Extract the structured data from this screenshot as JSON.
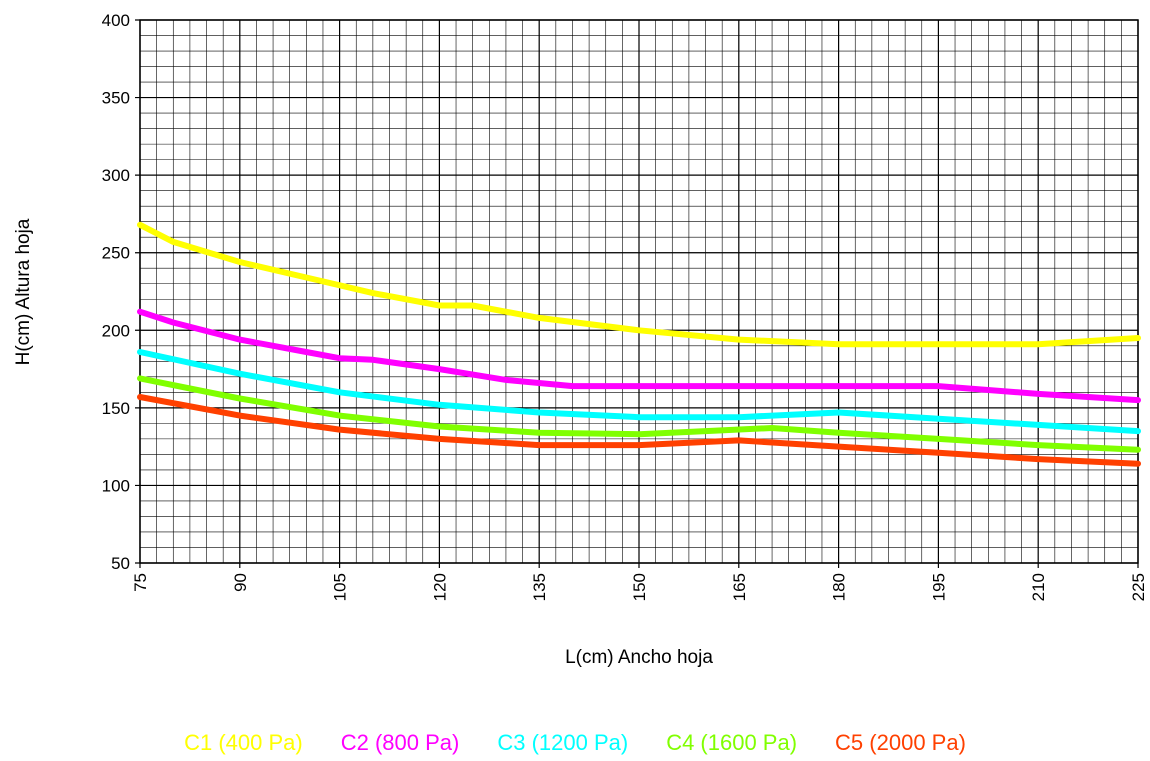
{
  "chart_data": {
    "type": "line",
    "xlabel": "L(cm) Ancho hoja",
    "ylabel": "H(cm) Altura hoja",
    "xlim": [
      75,
      225
    ],
    "ylim": [
      50,
      400
    ],
    "xticks": [
      75,
      90,
      105,
      120,
      135,
      150,
      165,
      180,
      195,
      210,
      225
    ],
    "yticks": [
      50,
      100,
      150,
      200,
      250,
      300,
      350,
      400
    ],
    "grid": true,
    "legend_position": "bottom",
    "series": [
      {
        "name": "C1 (400 Pa)",
        "color": "#ffff00",
        "x": [
          75,
          80,
          90,
          100,
          110,
          120,
          125,
          135,
          150,
          165,
          180,
          195,
          210,
          225
        ],
        "y": [
          268,
          257,
          244,
          234,
          224,
          216,
          216,
          208,
          200,
          194,
          191,
          191,
          191,
          195
        ]
      },
      {
        "name": "C2 (800 Pa)",
        "color": "#ff00ff",
        "x": [
          75,
          80,
          90,
          100,
          105,
          110,
          120,
          130,
          140,
          150,
          165,
          180,
          195,
          210,
          225
        ],
        "y": [
          212,
          205,
          194,
          186,
          182,
          181,
          175,
          168,
          164,
          164,
          164,
          164,
          164,
          159,
          155
        ]
      },
      {
        "name": "C3 (1200 Pa)",
        "color": "#00ffff",
        "x": [
          75,
          90,
          105,
          120,
          135,
          150,
          165,
          180,
          195,
          210,
          225
        ],
        "y": [
          186,
          172,
          160,
          152,
          147,
          144,
          144,
          147,
          143,
          139,
          135
        ]
      },
      {
        "name": "C4 (1600 Pa)",
        "color": "#80ff00",
        "x": [
          75,
          90,
          105,
          120,
          135,
          150,
          160,
          170,
          180,
          195,
          210,
          225
        ],
        "y": [
          169,
          156,
          145,
          138,
          134,
          133,
          135,
          137,
          134,
          130,
          126,
          123
        ]
      },
      {
        "name": "C5 (2000 Pa)",
        "color": "#ff4000",
        "x": [
          75,
          90,
          105,
          120,
          135,
          150,
          165,
          180,
          195,
          210,
          225
        ],
        "y": [
          157,
          145,
          136,
          130,
          126,
          126,
          129,
          125,
          121,
          117,
          114
        ]
      }
    ]
  }
}
